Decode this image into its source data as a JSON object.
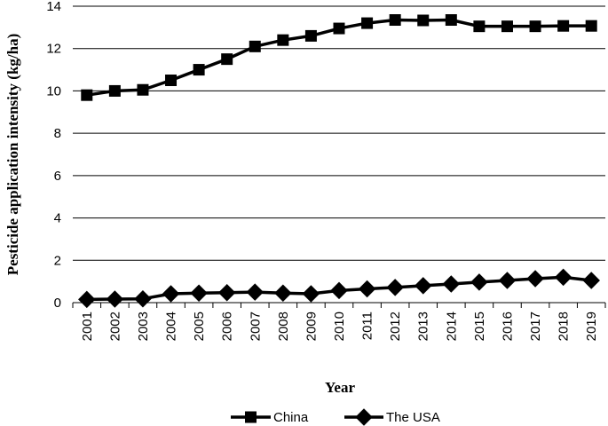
{
  "chart_data": {
    "type": "line",
    "title": "",
    "xlabel": "Year",
    "ylabel": "Pesticide application intensity (kg/ha)",
    "categories": [
      "2001",
      "2002",
      "2003",
      "2004",
      "2005",
      "2006",
      "2007",
      "2008",
      "2009",
      "2010",
      "2011",
      "2012",
      "2013",
      "2014",
      "2015",
      "2016",
      "2017",
      "2018",
      "2019"
    ],
    "ylim": [
      0,
      14
    ],
    "yticks": [
      "0",
      "2",
      "4",
      "6",
      "8",
      "10",
      "12",
      "14"
    ],
    "grid": "horizontal",
    "legend_position": "bottom",
    "series": [
      {
        "name": "China",
        "marker": "square",
        "color": "#000000",
        "values": [
          9.8,
          10.0,
          10.05,
          10.5,
          11.0,
          11.5,
          12.1,
          12.4,
          12.6,
          12.95,
          13.2,
          13.35,
          13.33,
          13.35,
          13.05,
          13.05,
          13.05,
          13.07,
          13.07
        ]
      },
      {
        "name": "The USA",
        "marker": "diamond",
        "color": "#000000",
        "values": [
          0.15,
          0.17,
          0.18,
          0.42,
          0.45,
          0.47,
          0.5,
          0.45,
          0.42,
          0.57,
          0.65,
          0.72,
          0.8,
          0.88,
          0.97,
          1.05,
          1.13,
          1.2,
          1.05
        ]
      }
    ]
  }
}
